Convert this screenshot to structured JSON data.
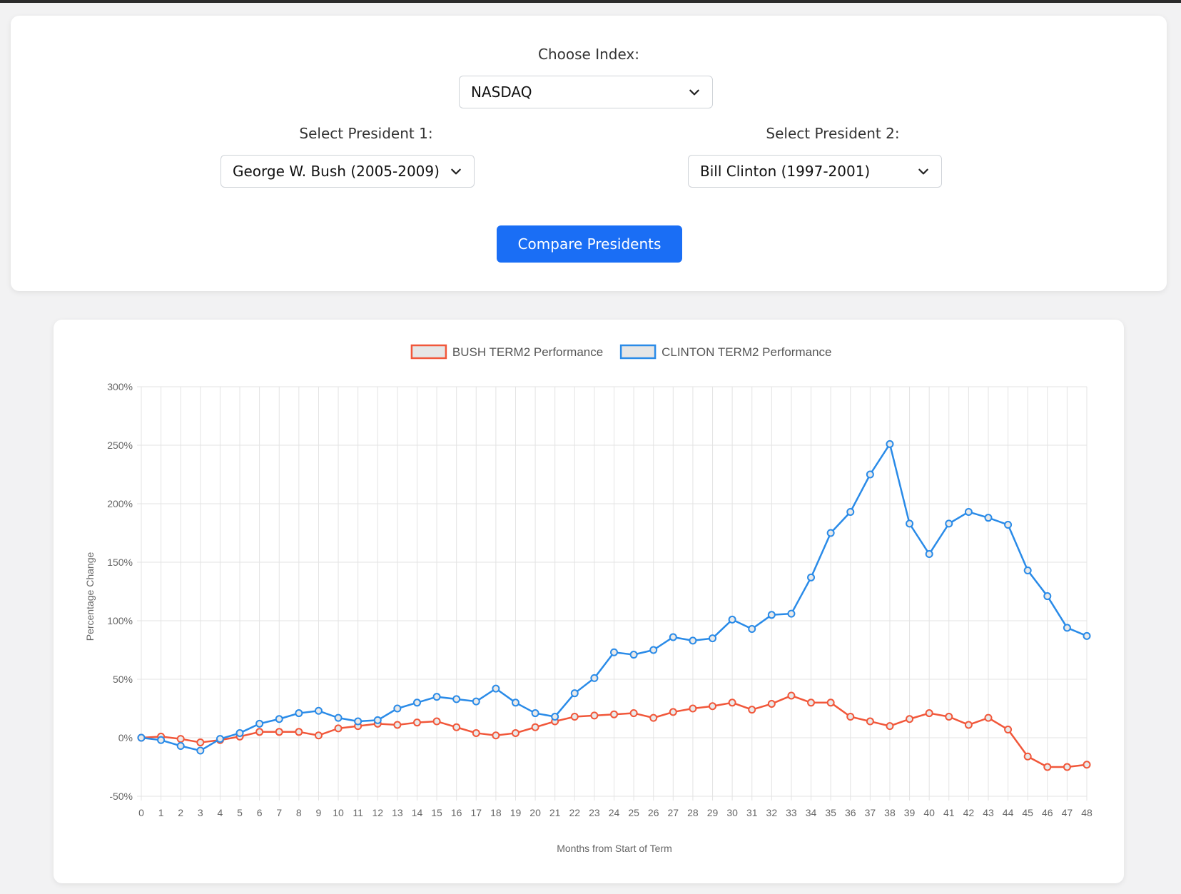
{
  "controls": {
    "index_label": "Choose Index:",
    "index_value": "NASDAQ",
    "president1_label": "Select President 1:",
    "president1_value": "George W. Bush (2005-2009)",
    "president2_label": "Select President 2:",
    "president2_value": "Bill Clinton (1997-2001)",
    "compare_label": "Compare Presidents"
  },
  "chart_data": {
    "type": "line",
    "xlabel": "Months from Start of Term",
    "ylabel": "Percentage Change",
    "ylim": [
      -50,
      300
    ],
    "yticks": [
      -50,
      0,
      50,
      100,
      150,
      200,
      250,
      300
    ],
    "ytick_suffix": "%",
    "grid": true,
    "legend_position": "top",
    "x": [
      0,
      1,
      2,
      3,
      4,
      5,
      6,
      7,
      8,
      9,
      10,
      11,
      12,
      13,
      14,
      15,
      16,
      17,
      18,
      19,
      20,
      21,
      22,
      23,
      24,
      25,
      26,
      27,
      28,
      29,
      30,
      31,
      32,
      33,
      34,
      35,
      36,
      37,
      38,
      39,
      40,
      41,
      42,
      43,
      44,
      45,
      46,
      47,
      48
    ],
    "series": [
      {
        "name": "BUSH TERM2 Performance",
        "color": "#f1573a",
        "values": [
          0,
          1,
          -1,
          -4,
          -2,
          1,
          5,
          5,
          5,
          2,
          8,
          10,
          12,
          11,
          13,
          14,
          9,
          4,
          2,
          4,
          9,
          14,
          18,
          19,
          20,
          21,
          17,
          22,
          25,
          27,
          30,
          24,
          29,
          36,
          30,
          30,
          18,
          14,
          10,
          16,
          21,
          18,
          11,
          17,
          7,
          -16,
          -25,
          -25,
          -23
        ]
      },
      {
        "name": "CLINTON TERM2 Performance",
        "color": "#2a8be8",
        "values": [
          0,
          -2,
          -7,
          -11,
          -1,
          4,
          12,
          16,
          21,
          23,
          17,
          14,
          15,
          25,
          30,
          35,
          33,
          31,
          42,
          30,
          21,
          18,
          38,
          51,
          73,
          71,
          75,
          86,
          83,
          85,
          101,
          93,
          105,
          106,
          137,
          175,
          193,
          225,
          251,
          183,
          157,
          183,
          193,
          188,
          182,
          143,
          121,
          94,
          87
        ]
      }
    ]
  }
}
